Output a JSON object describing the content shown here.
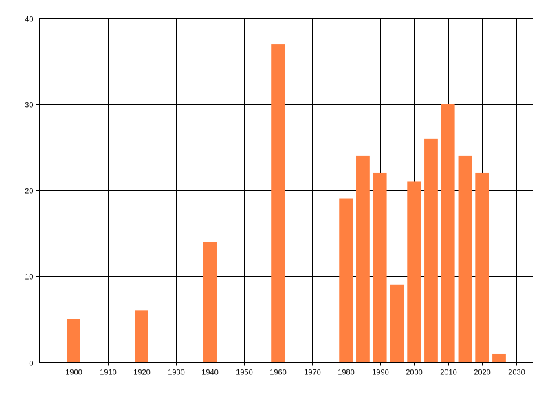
{
  "chart_data": {
    "type": "bar",
    "title": "",
    "xlabel": "",
    "ylabel": "",
    "x": [
      1900,
      1920,
      1940,
      1960,
      1980,
      1985,
      1990,
      1995,
      2000,
      2005,
      2010,
      2015,
      2020,
      2025
    ],
    "values": [
      5,
      6,
      14,
      37,
      19,
      24,
      22,
      9,
      21,
      26,
      30,
      24,
      22,
      1
    ],
    "xlim": [
      1890,
      2035
    ],
    "ylim": [
      0,
      40
    ],
    "x_ticks": [
      1900,
      1910,
      1920,
      1930,
      1940,
      1950,
      1960,
      1970,
      1980,
      1990,
      2000,
      2010,
      2020,
      2030
    ],
    "y_ticks": [
      0,
      10,
      20,
      30,
      40
    ],
    "bar_width_years": 4,
    "grid": true,
    "legend": "none",
    "colors": {
      "bar": "#FF8040",
      "grid": "#000000",
      "axis": "#000000"
    }
  }
}
